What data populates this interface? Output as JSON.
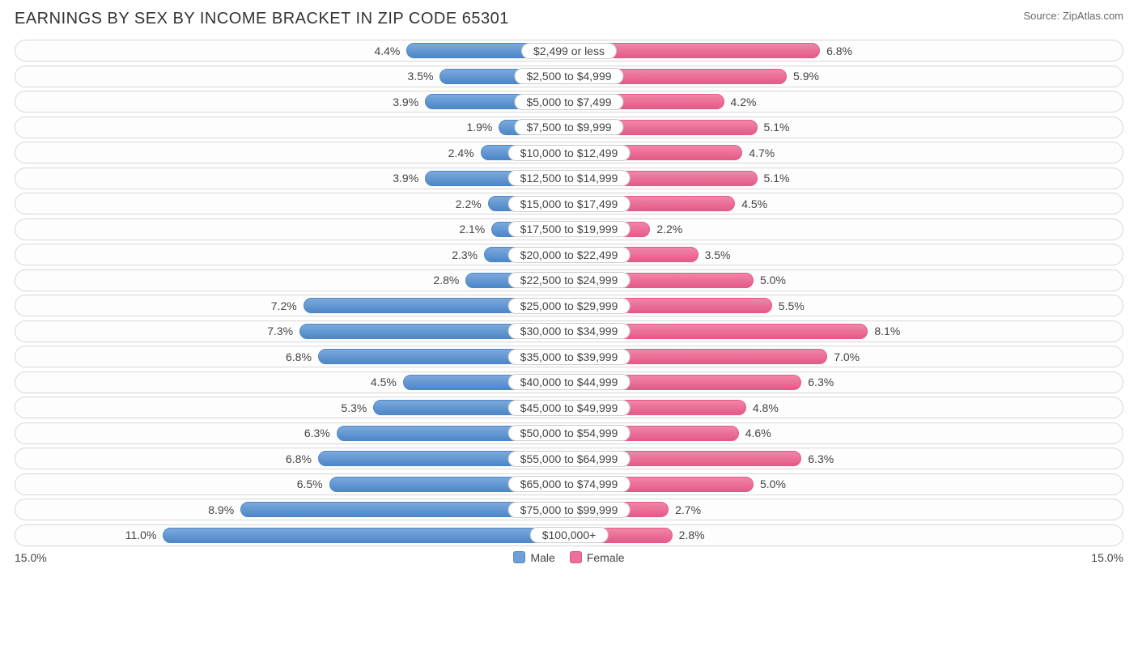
{
  "header": {
    "title": "EARNINGS BY SEX BY INCOME BRACKET IN ZIP CODE 65301",
    "source": "Source: ZipAtlas.com"
  },
  "chart": {
    "type": "diverging-bar",
    "axis_max_pct": 15.0,
    "axis_left_label": "15.0%",
    "axis_right_label": "15.0%",
    "track_border_color": "#d7d7d7",
    "track_bg_color": "#fdfdfd",
    "label_border_color": "#cccccc",
    "text_color": "#444444",
    "male": {
      "label": "Male",
      "bar_fill": "#7ca9dd",
      "bar_border": "#4c87c7",
      "swatch": "#6f9fd8"
    },
    "female": {
      "label": "Female",
      "bar_fill": "#f285a8",
      "bar_border": "#e45a88",
      "swatch": "#ef6f98"
    },
    "rows": [
      {
        "bracket": "$2,499 or less",
        "male_pct": 4.4,
        "female_pct": 6.8
      },
      {
        "bracket": "$2,500 to $4,999",
        "male_pct": 3.5,
        "female_pct": 5.9
      },
      {
        "bracket": "$5,000 to $7,499",
        "male_pct": 3.9,
        "female_pct": 4.2
      },
      {
        "bracket": "$7,500 to $9,999",
        "male_pct": 1.9,
        "female_pct": 5.1
      },
      {
        "bracket": "$10,000 to $12,499",
        "male_pct": 2.4,
        "female_pct": 4.7
      },
      {
        "bracket": "$12,500 to $14,999",
        "male_pct": 3.9,
        "female_pct": 5.1
      },
      {
        "bracket": "$15,000 to $17,499",
        "male_pct": 2.2,
        "female_pct": 4.5
      },
      {
        "bracket": "$17,500 to $19,999",
        "male_pct": 2.1,
        "female_pct": 2.2
      },
      {
        "bracket": "$20,000 to $22,499",
        "male_pct": 2.3,
        "female_pct": 3.5
      },
      {
        "bracket": "$22,500 to $24,999",
        "male_pct": 2.8,
        "female_pct": 5.0
      },
      {
        "bracket": "$25,000 to $29,999",
        "male_pct": 7.2,
        "female_pct": 5.5
      },
      {
        "bracket": "$30,000 to $34,999",
        "male_pct": 7.3,
        "female_pct": 8.1
      },
      {
        "bracket": "$35,000 to $39,999",
        "male_pct": 6.8,
        "female_pct": 7.0
      },
      {
        "bracket": "$40,000 to $44,999",
        "male_pct": 4.5,
        "female_pct": 6.3
      },
      {
        "bracket": "$45,000 to $49,999",
        "male_pct": 5.3,
        "female_pct": 4.8
      },
      {
        "bracket": "$50,000 to $54,999",
        "male_pct": 6.3,
        "female_pct": 4.6
      },
      {
        "bracket": "$55,000 to $64,999",
        "male_pct": 6.8,
        "female_pct": 6.3
      },
      {
        "bracket": "$65,000 to $74,999",
        "male_pct": 6.5,
        "female_pct": 5.0
      },
      {
        "bracket": "$75,000 to $99,999",
        "male_pct": 8.9,
        "female_pct": 2.7
      },
      {
        "bracket": "$100,000+",
        "male_pct": 11.0,
        "female_pct": 2.8
      }
    ]
  }
}
